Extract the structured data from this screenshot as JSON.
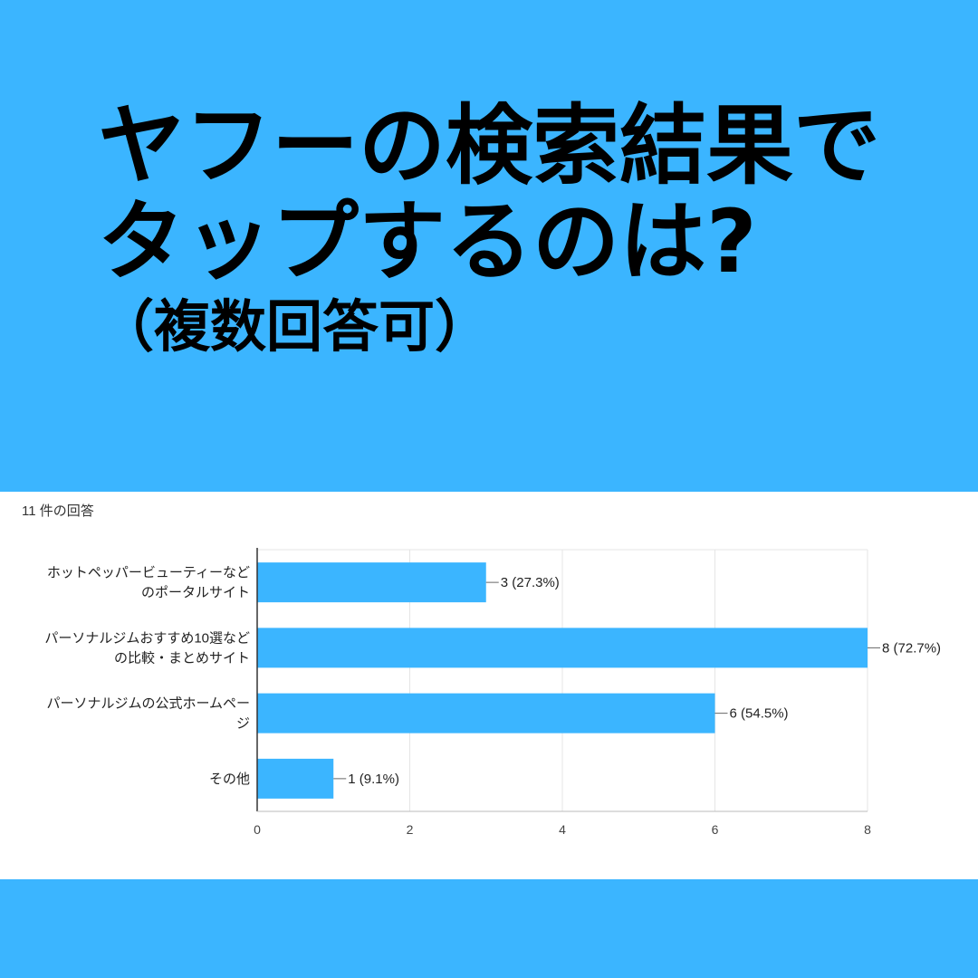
{
  "headline": {
    "line1": "ヤフーの検索結果で",
    "line2": "タップするのは?",
    "line3": "（複数回答可）"
  },
  "response_count": "11 件の回答",
  "colors": {
    "background": "#3bb5ff",
    "bar": "#3bb5ff",
    "grid": "#e5e5e5",
    "axis": "#333333"
  },
  "chart_data": {
    "type": "bar",
    "orientation": "horizontal",
    "categories": [
      [
        "ホットペッパービューティーなど",
        "のポータルサイト"
      ],
      [
        "パーソナルジムおすすめ10選など",
        "の比較・まとめサイト"
      ],
      [
        "パーソナルジムの公式ホームペー",
        "ジ"
      ],
      [
        "その他"
      ]
    ],
    "values": [
      3,
      8,
      6,
      1
    ],
    "data_labels": [
      "3 (27.3%)",
      "8 (72.7%)",
      "6 (54.5%)",
      "1 (9.1%)"
    ],
    "xlim": [
      0,
      8
    ],
    "x_ticks": [
      0,
      2,
      4,
      6,
      8
    ],
    "grid": true
  }
}
